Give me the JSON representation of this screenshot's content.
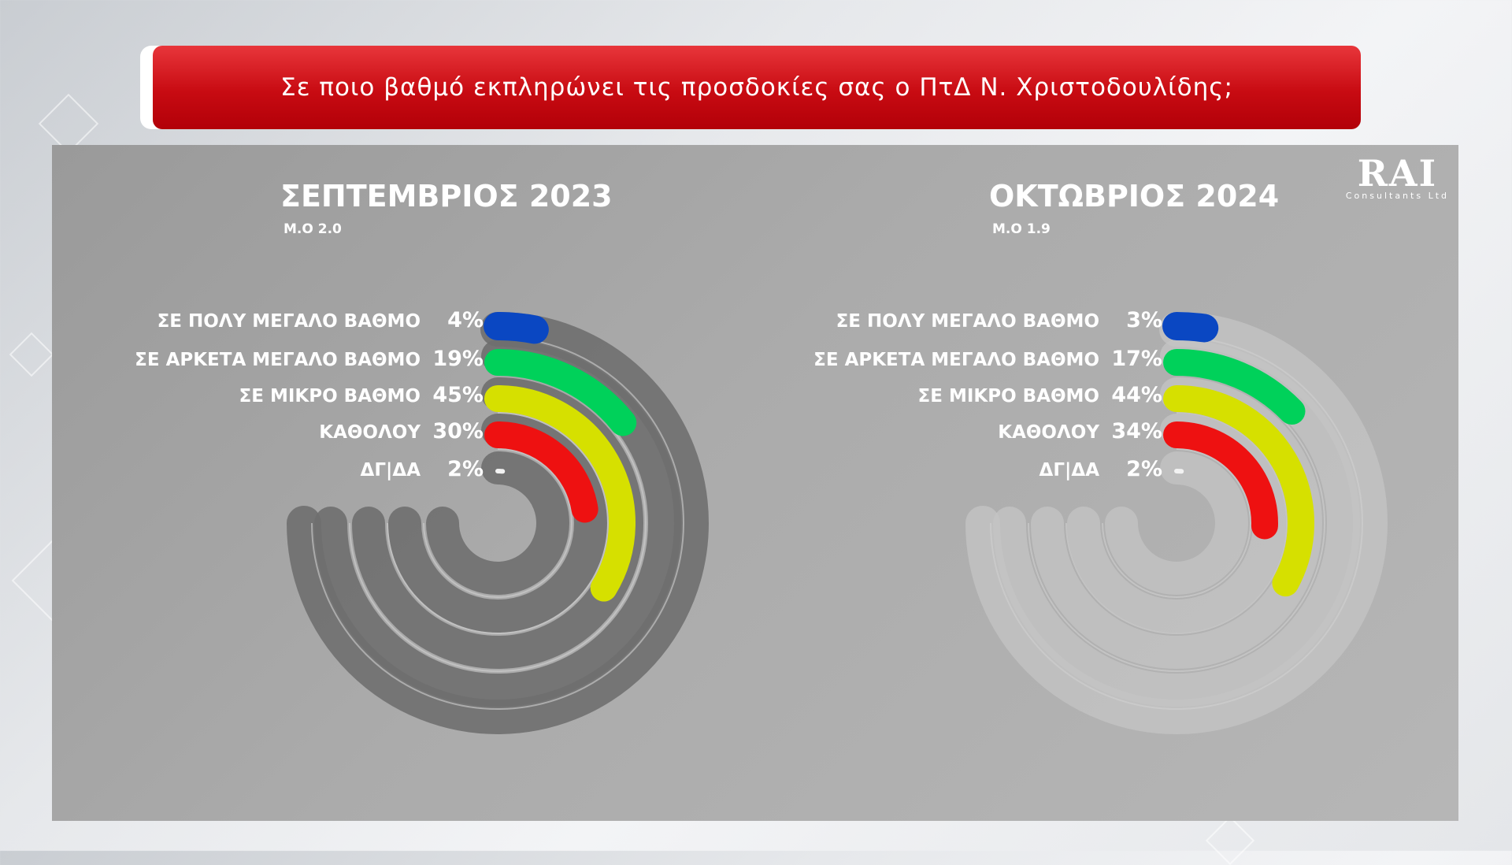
{
  "header": {
    "question": "Σε ποιο βαθμό εκπληρώνει τις προσδοκίες σας ο ΠτΔ Ν. Χριστοδουλίδης;"
  },
  "logo": {
    "name": "RAI",
    "subtitle": "Consultants Ltd"
  },
  "colors": {
    "track": "#6f6f6f",
    "track_light": "#c4c4c4",
    "categories": [
      "#0a47c2",
      "#00d15a",
      "#d6e000",
      "#ee1111",
      "#f2f2f2"
    ]
  },
  "chart_data": [
    {
      "type": "radial-bar",
      "title": "ΣΕΠΤΕΜΒΡΙΟΣ 2023",
      "subtitle": "Μ.Ο 2.0",
      "categories": [
        "ΣΕ ΠΟΛΥ ΜΕΓΑΛΟ ΒΑΘΜΟ",
        "ΣΕ ΑΡΚΕΤΑ ΜΕΓΑΛΟ ΒΑΘΜΟ",
        "ΣΕ ΜΙΚΡΟ ΒΑΘΜΟ",
        "ΚΑΘΟΛΟΥ",
        "ΔΓ|ΔΑ"
      ],
      "values": [
        4,
        19,
        45,
        30,
        2
      ],
      "value_labels": [
        "4%",
        "19%",
        "45%",
        "30%",
        "2%"
      ],
      "ylim": [
        0,
        100
      ]
    },
    {
      "type": "radial-bar",
      "title": "ΟΚΤΩΒΡΙΟΣ 2024",
      "subtitle": "Μ.Ο 1.9",
      "categories": [
        "ΣΕ ΠΟΛΥ ΜΕΓΑΛΟ ΒΑΘΜΟ",
        "ΣΕ ΑΡΚΕΤΑ ΜΕΓΑΛΟ ΒΑΘΜΟ",
        "ΣΕ ΜΙΚΡΟ ΒΑΘΜΟ",
        "ΚΑΘΟΛΟΥ",
        "ΔΓ|ΔΑ"
      ],
      "values": [
        3,
        17,
        44,
        34,
        2
      ],
      "value_labels": [
        "3%",
        "17%",
        "44%",
        "34%",
        "2%"
      ],
      "ylim": [
        0,
        100
      ]
    }
  ]
}
